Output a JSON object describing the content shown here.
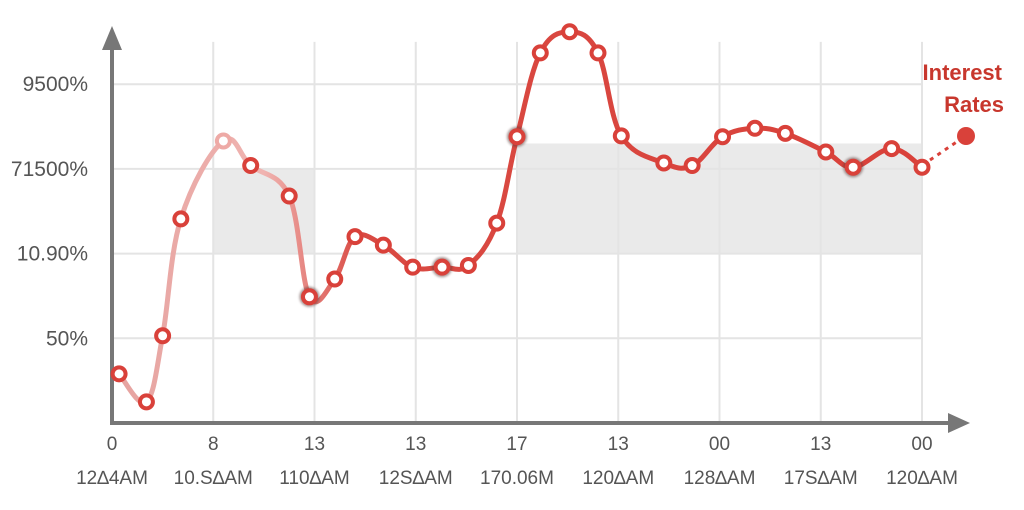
{
  "chart_data": {
    "type": "line",
    "title": "",
    "xlabel": "",
    "ylabel": "",
    "legend": {
      "label_line1": "Interest",
      "label_line2": "Rates",
      "placement": "top-right"
    },
    "grid": true,
    "colors": {
      "series": "#d9413a",
      "band": "#e6e6e6",
      "grid": "#e4e4e4",
      "axis": "#777777"
    },
    "y_ticks": [
      {
        "label": "9500%",
        "value": 4
      },
      {
        "label": "71500%",
        "value": 3
      },
      {
        "label": "10.90%",
        "value": 2
      },
      {
        "label": "50%",
        "value": 1
      }
    ],
    "ylim": [
      0,
      4.9
    ],
    "x_ticks": [
      {
        "top": "0",
        "bottom": "12∆4AM"
      },
      {
        "top": "8",
        "bottom": "10.S∆AM"
      },
      {
        "top": "13",
        "bottom": "110∆AM"
      },
      {
        "top": "13",
        "bottom": "12S∆AM"
      },
      {
        "top": "17",
        "bottom": "170.06M"
      },
      {
        "top": "13",
        "bottom": "120∆AM"
      },
      {
        "top": "00",
        "bottom": "128∆AM"
      },
      {
        "top": "13",
        "bottom": "17S∆AM"
      },
      {
        "top": "00",
        "bottom": "120∆AM"
      }
    ],
    "xlim": [
      0,
      8
    ],
    "series": [
      {
        "x": [
          0.07,
          0.34,
          0.5,
          0.68,
          1.1,
          1.37,
          1.75,
          1.95,
          2.2,
          2.4,
          2.68,
          2.97,
          3.26,
          3.52,
          3.8,
          4.0,
          4.23,
          4.52,
          4.8,
          5.03,
          5.45,
          5.73,
          6.03,
          6.35,
          6.65,
          7.05,
          7.32,
          7.7,
          8.0
        ],
        "y": [
          0.58,
          0.25,
          1.03,
          2.41,
          3.33,
          3.04,
          2.68,
          1.49,
          1.7,
          2.2,
          2.1,
          1.84,
          1.84,
          1.86,
          2.36,
          3.38,
          4.37,
          4.62,
          4.37,
          3.39,
          3.07,
          3.04,
          3.38,
          3.48,
          3.42,
          3.2,
          3.02,
          3.24,
          3.02
        ]
      }
    ],
    "bands": [
      {
        "x": [
          1.0,
          2.0
        ],
        "y": [
          2.0,
          3.0
        ]
      },
      {
        "x": [
          4.0,
          8.0
        ],
        "y": [
          2.0,
          3.3
        ]
      }
    ],
    "highlighted_indices": [
      7,
      12,
      15,
      26
    ]
  }
}
